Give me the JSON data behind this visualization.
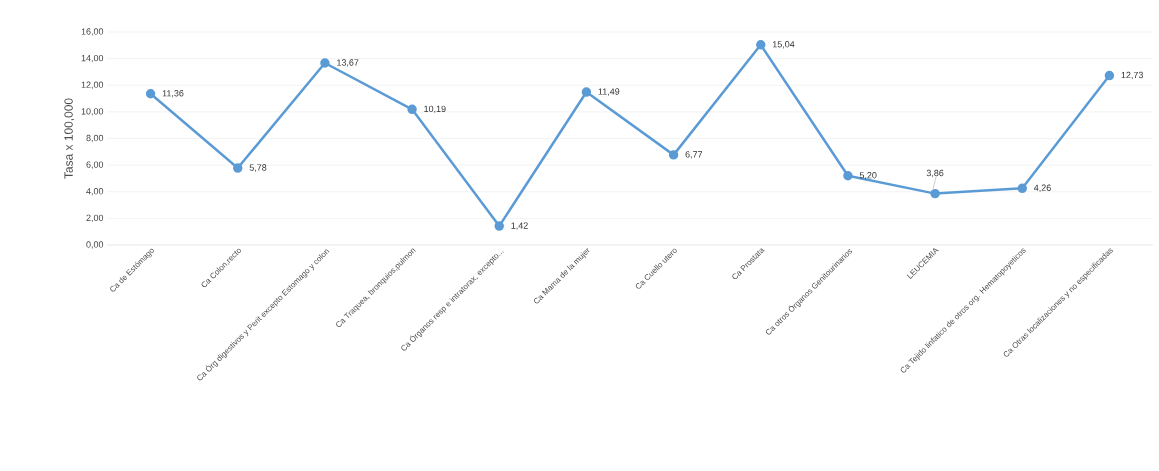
{
  "chart_data": {
    "type": "line",
    "ylabel": "Tasa x 100,000",
    "categories": [
      "Ca de  Estómago",
      "Ca Colon,recto",
      "Ca Órg digestivos y Perit excepto Estomago y colon",
      "Ca Traquea, bronquios,pulmon",
      "Ca Órganos resp e intratorax, excepto...",
      "Ca Mama de la mujer",
      "Ca Cuello utero",
      "Ca Prostata",
      "Ca otros Órganos  Genitourinarios",
      "LEUCEMIA",
      "Ca Tejido linfatico de otros org. Hematopoyeticos",
      "Ca Otras localizaciones y no especificadas"
    ],
    "values": [
      11.36,
      5.78,
      13.67,
      10.19,
      1.42,
      11.49,
      6.77,
      15.04,
      5.2,
      3.86,
      4.26,
      12.73
    ],
    "value_labels": [
      "11,36",
      "5,78",
      "13,67",
      "10,19",
      "1,42",
      "11,49",
      "6,77",
      "15,04",
      "5,20",
      "3,86",
      "4,26",
      "12,73"
    ],
    "color": "#5b9bd5",
    "marker": "circle",
    "line_style": "solid",
    "grid": "y",
    "ylim": [
      0,
      16
    ],
    "yticks": [
      {
        "value": 0,
        "label": "0,00"
      },
      {
        "value": 2,
        "label": "2,00"
      },
      {
        "value": 4,
        "label": "4,00"
      },
      {
        "value": 6,
        "label": "6,00"
      },
      {
        "value": 8,
        "label": "8,00"
      },
      {
        "value": 10,
        "label": "10,00"
      },
      {
        "value": 12,
        "label": "12,00"
      },
      {
        "value": 14,
        "label": "14,00"
      },
      {
        "value": 16,
        "label": "16,00"
      }
    ]
  }
}
